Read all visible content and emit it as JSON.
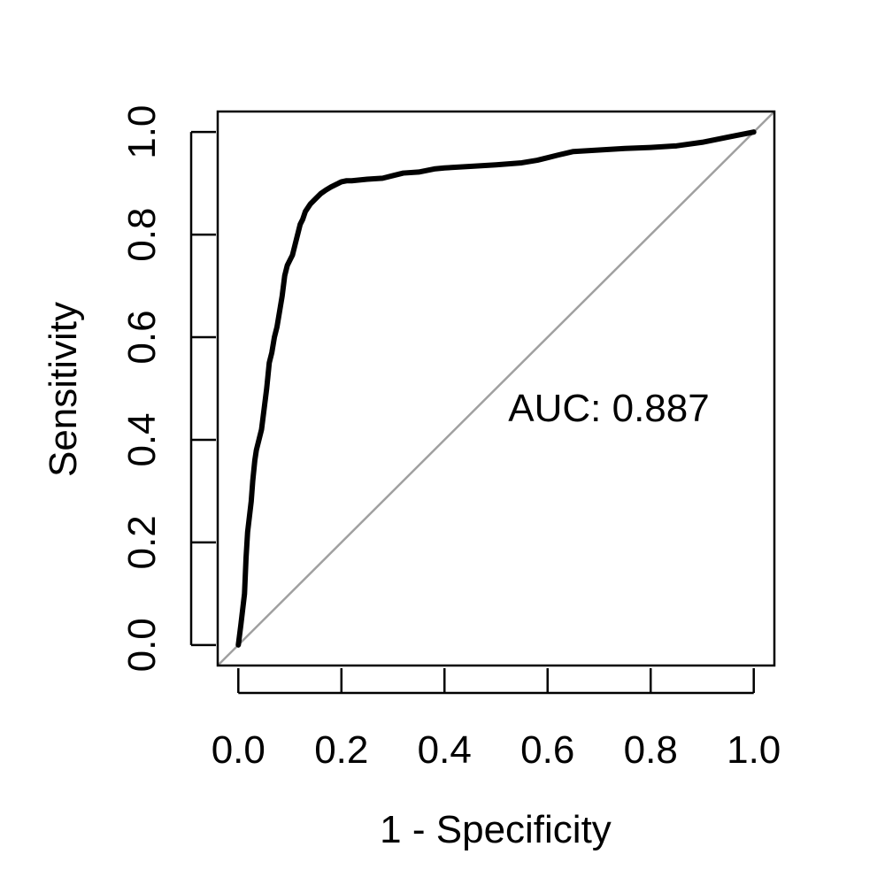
{
  "chart_data": {
    "type": "line",
    "title": "",
    "xlabel": "1 - Specificity",
    "ylabel": "Sensitivity",
    "xlim": [
      -0.04,
      1.04
    ],
    "ylim": [
      -0.04,
      1.04
    ],
    "x_ticks": [
      "0.0",
      "0.2",
      "0.4",
      "0.6",
      "0.8",
      "1.0"
    ],
    "y_ticks": [
      "0.0",
      "0.2",
      "0.4",
      "0.6",
      "0.8",
      "1.0"
    ],
    "grid": false,
    "annotation": "AUC: 0.887",
    "colors": {
      "roc": "#000000",
      "reference": "#a0a0a0"
    },
    "reference_line": {
      "x": [
        0,
        1
      ],
      "y": [
        0,
        1
      ]
    },
    "series": [
      {
        "x": [
          0.0,
          0.005,
          0.012,
          0.015,
          0.018,
          0.025,
          0.028,
          0.032,
          0.035,
          0.04,
          0.045,
          0.05,
          0.055,
          0.06,
          0.065,
          0.07,
          0.075,
          0.08,
          0.085,
          0.09,
          0.095,
          0.1,
          0.105,
          0.11,
          0.115,
          0.12,
          0.125,
          0.13,
          0.14,
          0.15,
          0.16,
          0.17,
          0.18,
          0.19,
          0.2,
          0.21,
          0.22,
          0.25,
          0.28,
          0.3,
          0.32,
          0.35,
          0.38,
          0.4,
          0.45,
          0.5,
          0.55,
          0.58,
          0.6,
          0.62,
          0.65,
          0.7,
          0.75,
          0.8,
          0.85,
          0.9,
          0.95,
          1.0
        ],
        "y": [
          0.0,
          0.04,
          0.1,
          0.17,
          0.22,
          0.28,
          0.32,
          0.36,
          0.38,
          0.4,
          0.42,
          0.46,
          0.5,
          0.55,
          0.57,
          0.6,
          0.62,
          0.65,
          0.68,
          0.72,
          0.74,
          0.75,
          0.76,
          0.78,
          0.8,
          0.82,
          0.83,
          0.845,
          0.86,
          0.87,
          0.88,
          0.887,
          0.893,
          0.898,
          0.903,
          0.905,
          0.905,
          0.908,
          0.91,
          0.915,
          0.92,
          0.922,
          0.928,
          0.93,
          0.933,
          0.936,
          0.94,
          0.945,
          0.95,
          0.955,
          0.962,
          0.965,
          0.968,
          0.97,
          0.973,
          0.98,
          0.99,
          1.0
        ]
      }
    ]
  }
}
